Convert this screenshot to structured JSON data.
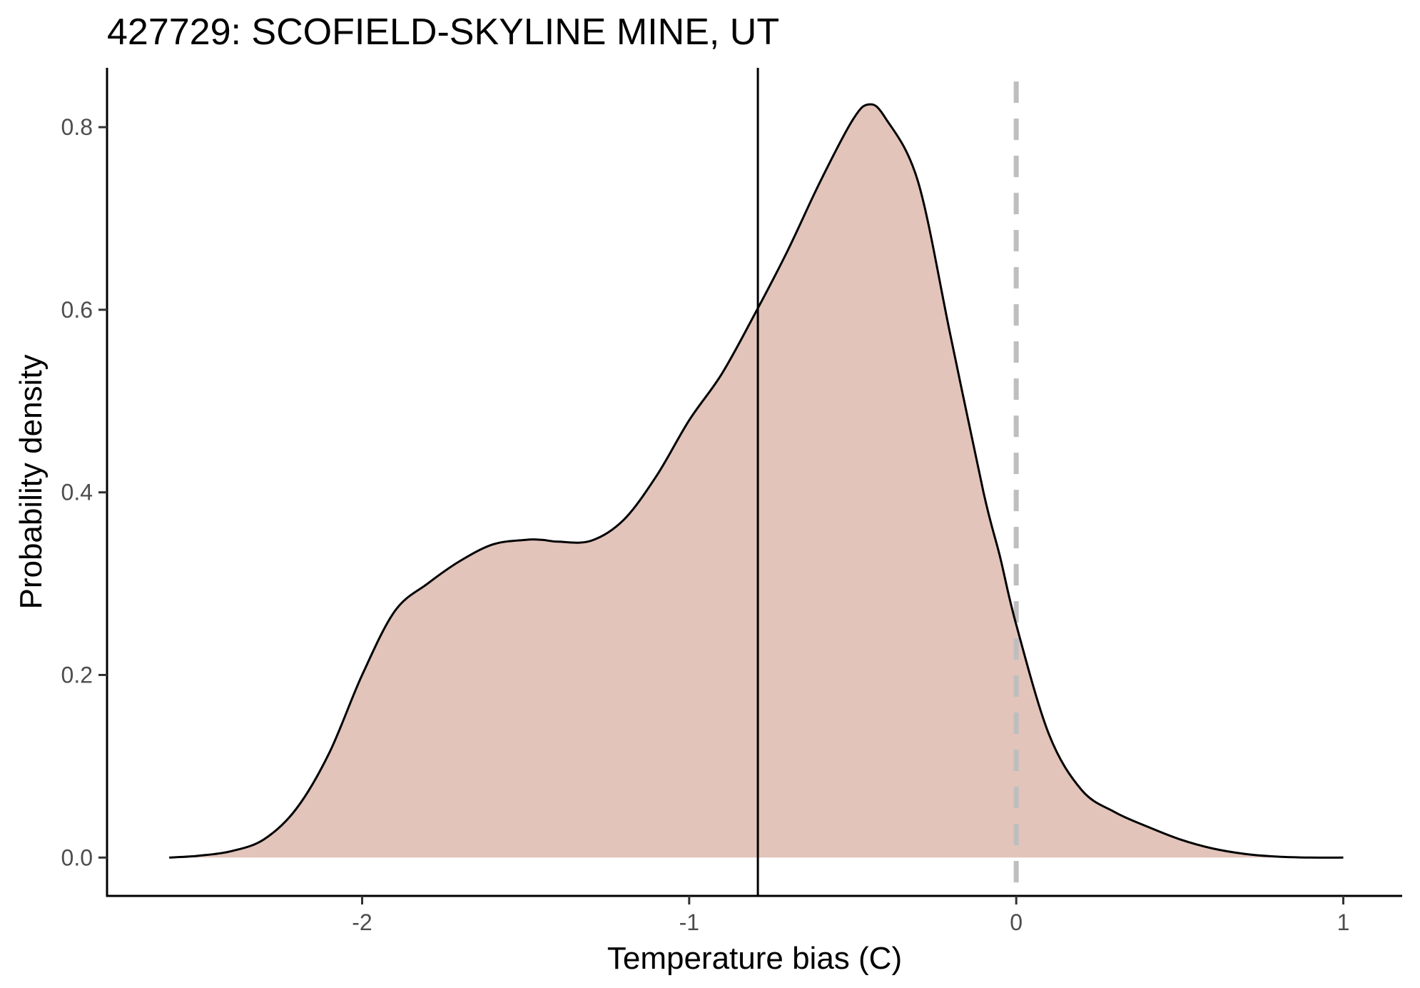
{
  "chart_data": {
    "type": "area",
    "title": "427729: SCOFIELD-SKYLINE MINE, UT",
    "xlabel": "Temperature bias (C)",
    "ylabel": "Probability density",
    "xlim": [
      -2.78,
      1.18
    ],
    "ylim": [
      -0.042,
      0.865
    ],
    "x_ticks": [
      -2,
      -1,
      0,
      1
    ],
    "x_tick_labels": [
      "-2",
      "-1",
      "0",
      "1"
    ],
    "y_ticks": [
      0.0,
      0.2,
      0.4,
      0.6,
      0.8
    ],
    "y_tick_labels": [
      "0.0",
      "0.2",
      "0.4",
      "0.6",
      "0.8"
    ],
    "grid": false,
    "legend": "none",
    "fill_color": "#e2c4bb",
    "line_color": "#000000",
    "reference_lines": [
      {
        "x": -0.79,
        "style": "solid",
        "color": "#000000"
      },
      {
        "x": 0.0,
        "style": "dashed",
        "color": "#bebebe"
      }
    ],
    "density": {
      "x": [
        -2.59,
        -2.5,
        -2.4,
        -2.3,
        -2.2,
        -2.1,
        -2.0,
        -1.9,
        -1.8,
        -1.7,
        -1.6,
        -1.5,
        -1.45,
        -1.4,
        -1.3,
        -1.2,
        -1.1,
        -1.0,
        -0.9,
        -0.8,
        -0.7,
        -0.6,
        -0.5,
        -0.45,
        -0.4,
        -0.3,
        -0.2,
        -0.1,
        -0.05,
        0.0,
        0.1,
        0.2,
        0.3,
        0.4,
        0.5,
        0.6,
        0.7,
        0.8,
        0.9,
        1.0
      ],
      "y": [
        0.0,
        0.002,
        0.007,
        0.02,
        0.054,
        0.115,
        0.2,
        0.27,
        0.3,
        0.325,
        0.343,
        0.348,
        0.348,
        0.346,
        0.347,
        0.37,
        0.418,
        0.479,
        0.53,
        0.595,
        0.664,
        0.74,
        0.808,
        0.825,
        0.81,
        0.74,
        0.57,
        0.4,
        0.33,
        0.255,
        0.135,
        0.074,
        0.05,
        0.034,
        0.02,
        0.01,
        0.004,
        0.001,
        0.0,
        0.0
      ]
    }
  }
}
